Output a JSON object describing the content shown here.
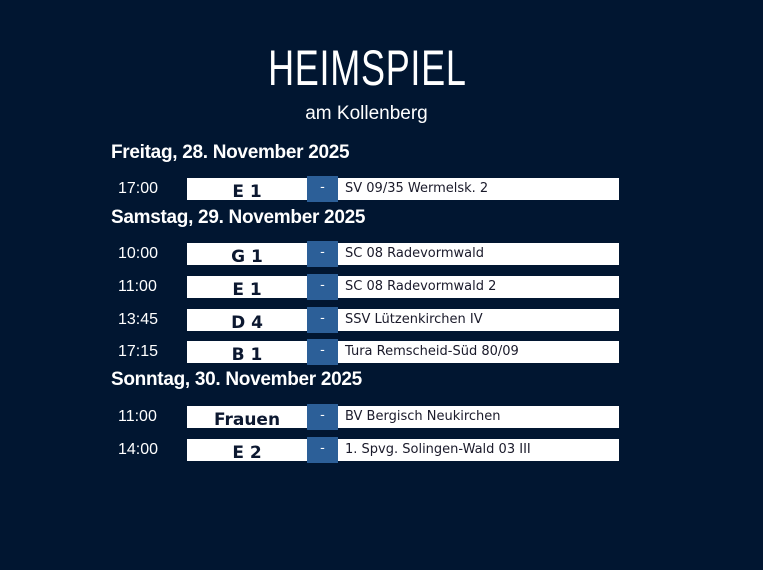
{
  "header": {
    "title": "HEIMSPIEL",
    "subtitle": "am Kollenberg"
  },
  "colors": {
    "background": "#011631",
    "accent": "#2c5f98",
    "row": "#ffffff"
  },
  "days": [
    {
      "label": "Freitag, 28. November 2025",
      "games": [
        {
          "time": "17:00",
          "team": "E 1",
          "separator": "-",
          "opponent": "SV 09/35 Wermelsk. 2"
        }
      ]
    },
    {
      "label": "Samstag, 29. November 2025",
      "games": [
        {
          "time": "10:00",
          "team": "G 1",
          "separator": "-",
          "opponent": "SC 08 Radevormwald"
        },
        {
          "time": "11:00",
          "team": "E 1",
          "separator": "-",
          "opponent": "SC 08 Radevormwald 2"
        },
        {
          "time": "13:45",
          "team": "D 4",
          "separator": "-",
          "opponent": "SSV Lützenkirchen IV"
        },
        {
          "time": "17:15",
          "team": "B 1",
          "separator": "-",
          "opponent": "Tura Remscheid-Süd 80/09"
        }
      ]
    },
    {
      "label": "Sonntag, 30. November 2025",
      "games": [
        {
          "time": "11:00",
          "team": "Frauen",
          "separator": "-",
          "opponent": "BV Bergisch Neukirchen"
        },
        {
          "time": "14:00",
          "team": "E 2",
          "separator": "-",
          "opponent": "1. Spvg. Solingen-Wald 03 III"
        }
      ]
    }
  ]
}
